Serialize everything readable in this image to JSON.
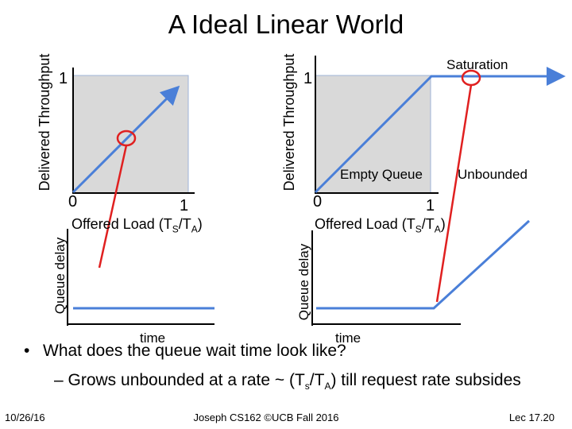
{
  "slide": {
    "title": "A Ideal Linear World"
  },
  "left_panel": {
    "y_axis_label": "Delivered Throughput",
    "y_tick_one": "1",
    "x_tick_zero": "0",
    "x_tick_one": "1",
    "x_axis_label_prefix": "Offered Load  (T",
    "x_axis_sub_s": "S",
    "x_axis_mid": "/T",
    "x_axis_sub_a": "A",
    "x_axis_suffix": ")",
    "delay_y_label": "Queue delay",
    "delay_x_label": "time"
  },
  "right_panel": {
    "y_axis_label": "Delivered Throughput",
    "y_tick_one": "1",
    "x_tick_zero": "0",
    "x_tick_one": "1",
    "x_axis_label_prefix": "Offered Load  (T",
    "x_axis_sub_s": "S",
    "x_axis_mid": "/T",
    "x_axis_sub_a": "A",
    "x_axis_suffix": ")",
    "saturation_label": "Saturation",
    "empty_queue_label": "Empty Queue",
    "unbounded_label": "Unbounded",
    "delay_y_label": "Queue delay",
    "delay_x_label": "time"
  },
  "bullets": {
    "main": "What does the queue wait time look like?",
    "sub_prefix": "– Grows unbounded at a rate ~ (T",
    "sub_sub_s": "s",
    "sub_mid": "/T",
    "sub_sub_a": "A",
    "sub_suffix": ") till request rate subsides"
  },
  "footer": {
    "date": "10/26/16",
    "course": "Joseph CS162 ©UCB Fall 2016",
    "lecture": "Lec 17.20"
  },
  "colors": {
    "line_blue": "#4a7fd8",
    "circle_red": "#e02020",
    "shade_gray": "#d9d9d9"
  },
  "icons": {
    "bullet": "bullet-dot"
  }
}
